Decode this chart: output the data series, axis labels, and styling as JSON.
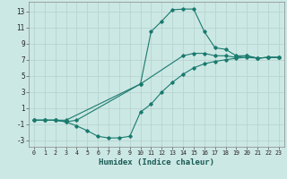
{
  "title": "",
  "xlabel": "Humidex (Indice chaleur)",
  "ylabel": "",
  "bg_color": "#cce8e4",
  "grid_color": "#b8d4d0",
  "line_color": "#1a7a6e",
  "series": [
    {
      "x": [
        0,
        1,
        2,
        3,
        4,
        10,
        11,
        12,
        13,
        14,
        15,
        16,
        17,
        18,
        19,
        20,
        21,
        22,
        23
      ],
      "y": [
        -0.5,
        -0.5,
        -0.5,
        -0.7,
        -0.5,
        4.0,
        10.5,
        11.8,
        13.2,
        13.3,
        13.3,
        10.5,
        8.5,
        8.3,
        7.5,
        7.5,
        7.2,
        7.3,
        7.3
      ]
    },
    {
      "x": [
        0,
        1,
        2,
        3,
        10,
        14,
        15,
        16,
        17,
        18,
        19,
        20,
        21,
        22,
        23
      ],
      "y": [
        -0.5,
        -0.5,
        -0.5,
        -0.5,
        4.0,
        7.5,
        7.8,
        7.8,
        7.5,
        7.5,
        7.3,
        7.5,
        7.2,
        7.3,
        7.3
      ]
    },
    {
      "x": [
        0,
        1,
        2,
        3,
        4,
        5,
        6,
        7,
        8,
        9,
        10,
        11,
        12,
        13,
        14,
        15,
        16,
        17,
        18,
        19,
        20,
        21,
        22,
        23
      ],
      "y": [
        -0.5,
        -0.5,
        -0.5,
        -0.7,
        -1.2,
        -1.8,
        -2.5,
        -2.7,
        -2.7,
        -2.5,
        0.5,
        1.5,
        3.0,
        4.2,
        5.2,
        6.0,
        6.5,
        6.8,
        7.0,
        7.2,
        7.3,
        7.2,
        7.3,
        7.3
      ]
    }
  ],
  "xlim": [
    -0.5,
    23.5
  ],
  "ylim": [
    -3.8,
    14.2
  ],
  "xticks": [
    0,
    1,
    2,
    3,
    4,
    5,
    6,
    7,
    8,
    9,
    10,
    11,
    12,
    13,
    14,
    15,
    16,
    17,
    18,
    19,
    20,
    21,
    22,
    23
  ],
  "yticks": [
    -3,
    -1,
    1,
    3,
    5,
    7,
    9,
    11,
    13
  ],
  "figsize": [
    3.2,
    2.0
  ],
  "dpi": 100
}
